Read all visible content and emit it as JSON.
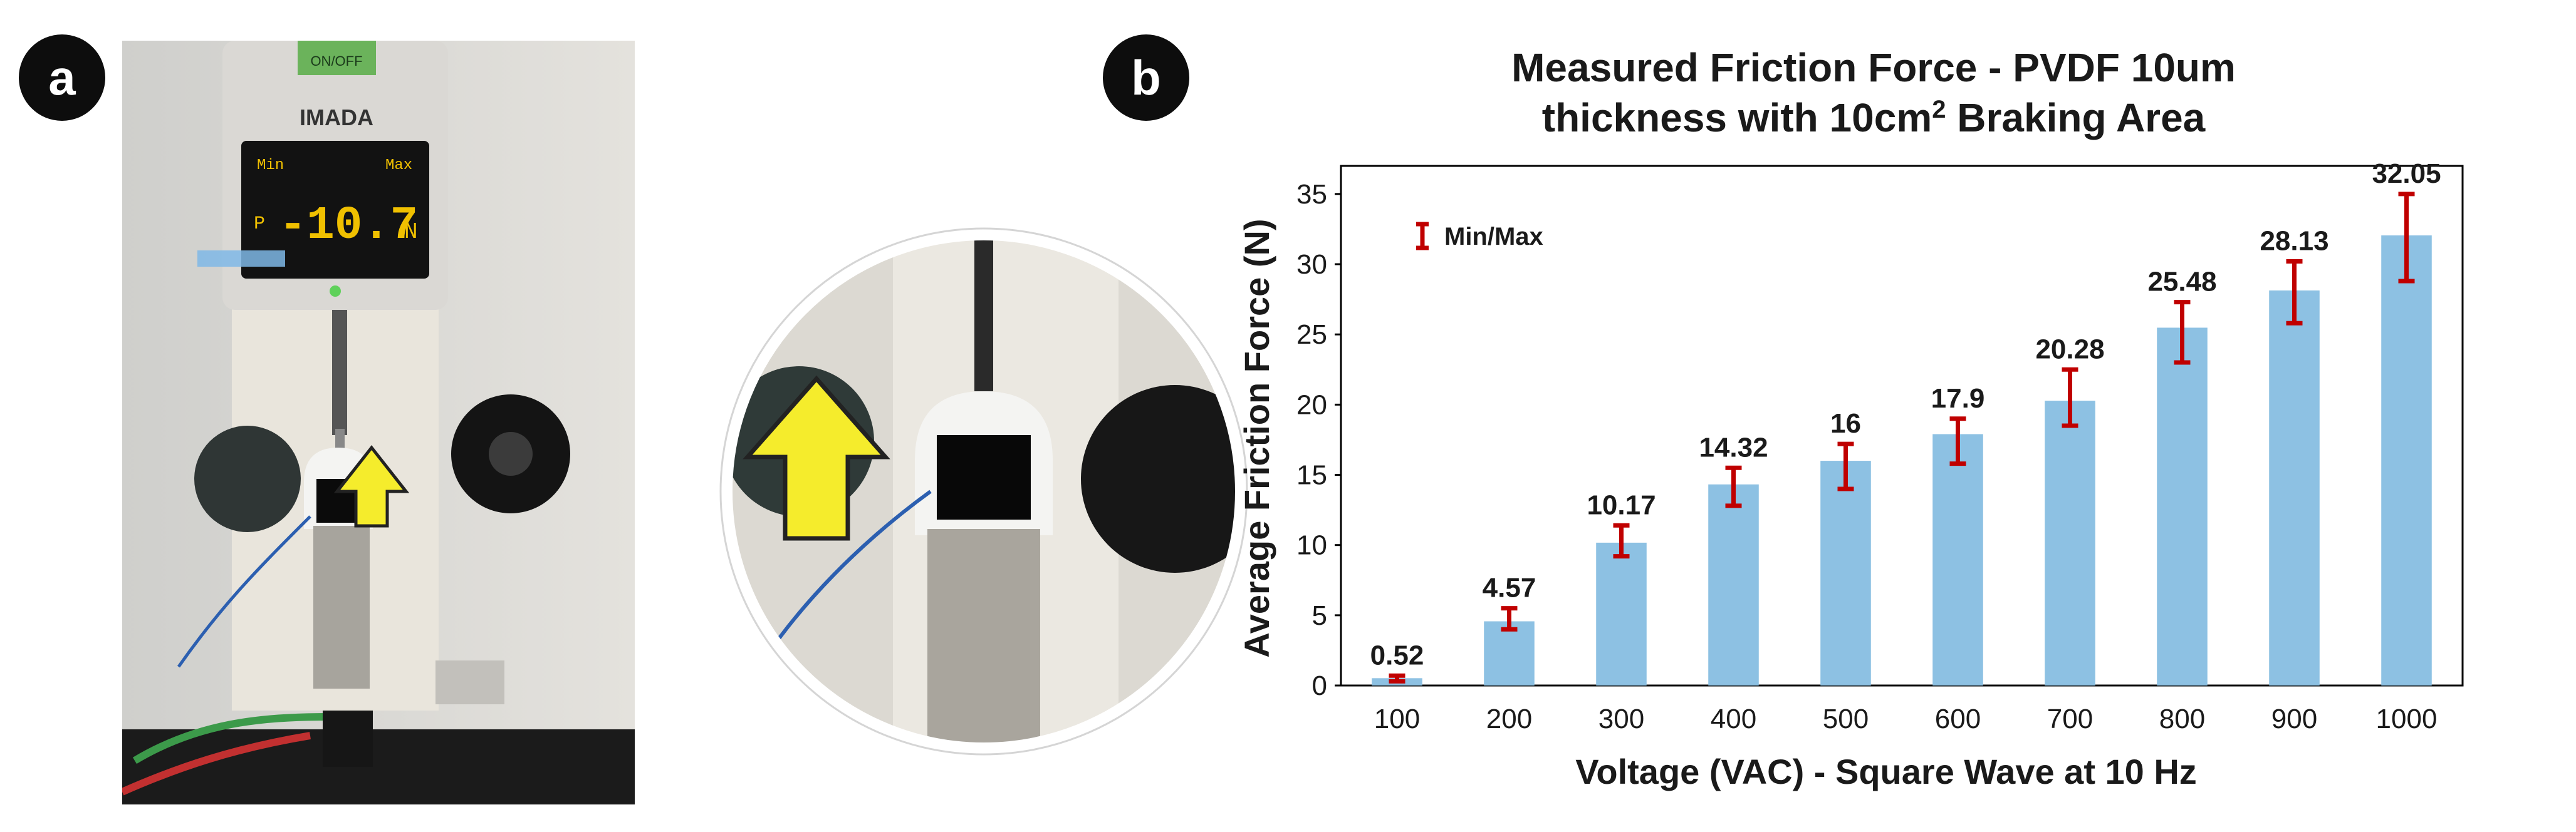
{
  "panels": {
    "a_label": "a",
    "b_label": "b"
  },
  "photo": {
    "gauge_brand": "IMADA",
    "gauge_reading": "-10.7",
    "gauge_unit": "N",
    "gauge_mode": "P",
    "gauge_button": "ON/OFF",
    "gauge_status_max": "Max",
    "gauge_status_min": "Min"
  },
  "chart_data": {
    "type": "bar",
    "title_line1": "Measured Friction Force - PVDF 10um",
    "title_line2_pre": "thickness with 10cm",
    "title_line2_sup": "2",
    "title_line2_post": " Braking Area",
    "xlabel": "Voltage (VAC) - Square Wave at 10 Hz",
    "ylabel": "Average Friction Force (N)",
    "categories": [
      "100",
      "200",
      "300",
      "400",
      "500",
      "600",
      "700",
      "800",
      "900",
      "1000"
    ],
    "values": [
      0.52,
      4.57,
      10.17,
      14.32,
      16,
      17.9,
      20.28,
      25.48,
      28.13,
      32.05
    ],
    "value_labels": [
      "0.52",
      "4.57",
      "10.17",
      "14.32",
      "16",
      "17.9",
      "20.28",
      "25.48",
      "28.13",
      "32.05"
    ],
    "err_min": [
      0.3,
      4.0,
      9.2,
      12.8,
      14.0,
      15.8,
      18.5,
      23.0,
      25.8,
      28.8
    ],
    "err_max": [
      0.7,
      5.5,
      11.4,
      15.5,
      17.2,
      19.0,
      22.5,
      27.3,
      30.2,
      35.0
    ],
    "ylim": [
      0,
      37
    ],
    "yticks": [
      "0",
      "5",
      "10",
      "15",
      "20",
      "25",
      "30",
      "35"
    ],
    "legend": {
      "label": "Min/Max",
      "position": "top-left"
    },
    "colors": {
      "bar": "#8dc1e3",
      "error": "#c00000",
      "axis": "#000000"
    }
  }
}
